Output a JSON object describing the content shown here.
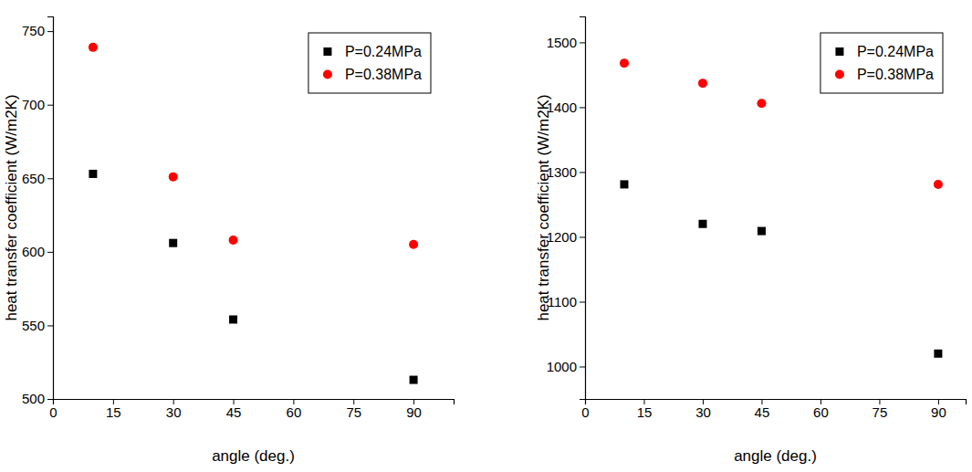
{
  "chart_data": [
    {
      "type": "scatter",
      "x_label": "angle (deg.)",
      "y_label": "heat transfer coefficient (W/m2K)",
      "x": [
        10,
        30,
        45,
        90
      ],
      "xlim": [
        0,
        100
      ],
      "xticks": [
        0,
        15,
        30,
        45,
        60,
        75,
        90
      ],
      "ylim": [
        500,
        760
      ],
      "yticks": [
        500,
        550,
        600,
        650,
        700,
        750
      ],
      "grid": false,
      "legend": "upper-right",
      "series": [
        {
          "name": "P=0.24MPa",
          "color": "#000000",
          "marker": "square",
          "values": [
            653,
            606,
            554,
            513
          ]
        },
        {
          "name": "P=0.38MPa",
          "color": "#ff0000",
          "marker": "circle",
          "values": [
            739,
            651,
            608,
            605
          ]
        }
      ]
    },
    {
      "type": "scatter",
      "x_label": "angle (deg.)",
      "y_label": "heat transfer coefficient (W/m2K)",
      "x": [
        10,
        30,
        45,
        90
      ],
      "xlim": [
        0,
        97
      ],
      "xticks": [
        0,
        15,
        30,
        45,
        60,
        75,
        90
      ],
      "ylim": [
        950,
        1540
      ],
      "yticks": [
        1000,
        1100,
        1200,
        1300,
        1400,
        1500
      ],
      "grid": false,
      "legend": "upper-right",
      "series": [
        {
          "name": "P=0.24MPa",
          "color": "#000000",
          "marker": "square",
          "values": [
            1281,
            1220,
            1209,
            1020
          ]
        },
        {
          "name": "P=0.38MPa",
          "color": "#ff0000",
          "marker": "circle",
          "values": [
            1468,
            1437,
            1406,
            1281
          ]
        }
      ]
    }
  ]
}
